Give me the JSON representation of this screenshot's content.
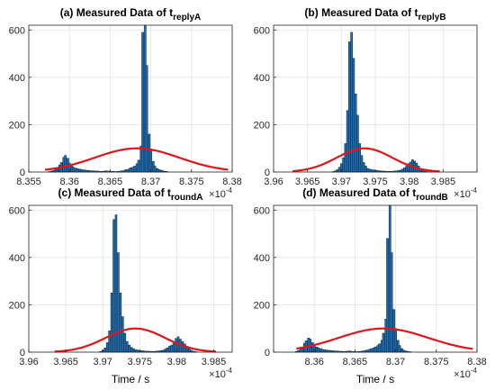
{
  "figure": {
    "xlabel": "Time / s",
    "colors": {
      "bar": "#1f6fb5",
      "bar_edge": "#0b2540",
      "curve": "#e0161b",
      "axis": "#262626",
      "grid": "#e2e2e2"
    }
  },
  "chart_data": [
    {
      "type": "bar",
      "title_main": "(a) Measured Data of t",
      "title_sub": "replyA",
      "xlabel": "",
      "ylabel": "",
      "xlim": [
        8.355,
        8.38
      ],
      "ylim": [
        0,
        620
      ],
      "xticks": [
        8.355,
        8.36,
        8.365,
        8.37,
        8.375,
        8.38
      ],
      "xtick_labels": [
        "8.355",
        "8.36",
        "8.365",
        "8.37",
        "8.375",
        "8.38"
      ],
      "yticks": [
        0,
        200,
        400,
        600
      ],
      "x_exponent": "×10^-4",
      "grid": true,
      "bin_width": 0.000245,
      "bars": [
        [
          8.3575,
          2
        ],
        [
          8.3578,
          4
        ],
        [
          8.358,
          6
        ],
        [
          8.3583,
          10
        ],
        [
          8.3585,
          18
        ],
        [
          8.3588,
          30
        ],
        [
          8.359,
          40
        ],
        [
          8.3593,
          62
        ],
        [
          8.3595,
          70
        ],
        [
          8.3598,
          58
        ],
        [
          8.36,
          38
        ],
        [
          8.3603,
          25
        ],
        [
          8.3605,
          20
        ],
        [
          8.3608,
          16
        ],
        [
          8.361,
          14
        ],
        [
          8.3613,
          12
        ],
        [
          8.3615,
          10
        ],
        [
          8.3618,
          9
        ],
        [
          8.362,
          8
        ],
        [
          8.3623,
          7
        ],
        [
          8.3625,
          6
        ],
        [
          8.3628,
          5
        ],
        [
          8.363,
          5
        ],
        [
          8.3633,
          4
        ],
        [
          8.3635,
          4
        ],
        [
          8.3638,
          3
        ],
        [
          8.364,
          3
        ],
        [
          8.3643,
          4
        ],
        [
          8.3645,
          5
        ],
        [
          8.3648,
          4
        ],
        [
          8.365,
          3
        ],
        [
          8.3653,
          3
        ],
        [
          8.3655,
          2
        ],
        [
          8.3658,
          2
        ],
        [
          8.366,
          3
        ],
        [
          8.3663,
          4
        ],
        [
          8.3665,
          5
        ],
        [
          8.3668,
          8
        ],
        [
          8.367,
          10
        ],
        [
          8.3673,
          12
        ],
        [
          8.3675,
          18
        ],
        [
          8.3678,
          20
        ],
        [
          8.368,
          25
        ],
        [
          8.3683,
          35
        ],
        [
          8.3685,
          50
        ],
        [
          8.3688,
          110
        ],
        [
          8.369,
          590
        ],
        [
          8.3693,
          620
        ],
        [
          8.3695,
          450
        ],
        [
          8.3698,
          160
        ],
        [
          8.37,
          95
        ],
        [
          8.3703,
          45
        ],
        [
          8.3705,
          25
        ],
        [
          8.3708,
          15
        ],
        [
          8.371,
          10
        ],
        [
          8.3713,
          8
        ],
        [
          8.3715,
          5
        ],
        [
          8.3718,
          3
        ],
        [
          8.372,
          2
        ]
      ],
      "curve": {
        "type": "gaussian",
        "mean": 8.3683,
        "std": 0.0052,
        "peak": 100,
        "range": [
          8.357,
          8.3795
        ]
      }
    },
    {
      "type": "bar",
      "title_main": "(b) Measured Data of t",
      "title_sub": "replyB",
      "xlabel": "",
      "ylabel": "",
      "xlim": [
        3.96,
        3.99
      ],
      "ylim": [
        0,
        620
      ],
      "xticks": [
        3.96,
        3.965,
        3.97,
        3.975,
        3.98,
        3.985,
        3.99
      ],
      "xtick_labels": [
        "3.96",
        "3.965",
        "3.97",
        "3.975",
        "3.98",
        "3.985",
        ""
      ],
      "yticks": [
        0,
        200,
        400,
        600
      ],
      "x_exponent": "×10^-4",
      "grid": true,
      "bin_width": 0.00028,
      "bars": [
        [
          3.9688,
          2
        ],
        [
          3.9691,
          5
        ],
        [
          3.9694,
          10
        ],
        [
          3.9697,
          20
        ],
        [
          3.97,
          35
        ],
        [
          3.9703,
          60
        ],
        [
          3.9706,
          120
        ],
        [
          3.9709,
          260
        ],
        [
          3.9712,
          550
        ],
        [
          3.9715,
          590
        ],
        [
          3.9718,
          480
        ],
        [
          3.9721,
          330
        ],
        [
          3.9724,
          240
        ],
        [
          3.9727,
          120
        ],
        [
          3.973,
          70
        ],
        [
          3.9733,
          40
        ],
        [
          3.9736,
          25
        ],
        [
          3.9739,
          15
        ],
        [
          3.9742,
          12
        ],
        [
          3.9745,
          10
        ],
        [
          3.9748,
          8
        ],
        [
          3.9751,
          7
        ],
        [
          3.9754,
          6
        ],
        [
          3.9757,
          5
        ],
        [
          3.976,
          4
        ],
        [
          3.9763,
          4
        ],
        [
          3.9766,
          3
        ],
        [
          3.9769,
          3
        ],
        [
          3.9772,
          3
        ],
        [
          3.9775,
          3
        ],
        [
          3.9778,
          4
        ],
        [
          3.9781,
          5
        ],
        [
          3.9784,
          6
        ],
        [
          3.9787,
          8
        ],
        [
          3.979,
          12
        ],
        [
          3.9793,
          18
        ],
        [
          3.9796,
          25
        ],
        [
          3.9799,
          35
        ],
        [
          3.9802,
          42
        ],
        [
          3.9805,
          52
        ],
        [
          3.9808,
          46
        ],
        [
          3.9811,
          38
        ],
        [
          3.9814,
          25
        ],
        [
          3.9817,
          15
        ],
        [
          3.982,
          8
        ],
        [
          3.9823,
          4
        ],
        [
          3.9826,
          2
        ]
      ],
      "curve": {
        "type": "gaussian",
        "mean": 3.9734,
        "std": 0.0041,
        "peak": 100,
        "range": [
          3.9628,
          3.9845
        ]
      }
    },
    {
      "type": "bar",
      "title_main": "(c) Measured Data of t",
      "title_sub": "roundA",
      "xlabel": "Time / s",
      "ylabel": "",
      "xlim": [
        3.96,
        3.9875
      ],
      "ylim": [
        0,
        620
      ],
      "xticks": [
        3.96,
        3.965,
        3.97,
        3.975,
        3.98,
        3.985
      ],
      "xtick_labels": [
        "3.96",
        "3.965",
        "3.97",
        "3.975",
        "3.98",
        "3.985"
      ],
      "yticks": [
        0,
        200,
        400,
        600
      ],
      "x_exponent": "×10^-4",
      "grid": true,
      "bin_width": 0.000245,
      "bars": [
        [
          3.9697,
          3
        ],
        [
          3.97,
          8
        ],
        [
          3.9703,
          18
        ],
        [
          3.9706,
          40
        ],
        [
          3.9709,
          90
        ],
        [
          3.9712,
          250
        ],
        [
          3.9715,
          560
        ],
        [
          3.9718,
          580
        ],
        [
          3.9721,
          420
        ],
        [
          3.9724,
          250
        ],
        [
          3.9727,
          150
        ],
        [
          3.973,
          80
        ],
        [
          3.9733,
          45
        ],
        [
          3.9736,
          30
        ],
        [
          3.9739,
          20
        ],
        [
          3.9742,
          14
        ],
        [
          3.9745,
          10
        ],
        [
          3.9748,
          8
        ],
        [
          3.9751,
          7
        ],
        [
          3.9754,
          6
        ],
        [
          3.9757,
          5
        ],
        [
          3.976,
          4
        ],
        [
          3.9763,
          4
        ],
        [
          3.9766,
          3
        ],
        [
          3.9769,
          3
        ],
        [
          3.9772,
          4
        ],
        [
          3.9775,
          5
        ],
        [
          3.9778,
          6
        ],
        [
          3.9781,
          8
        ],
        [
          3.9784,
          12
        ],
        [
          3.9787,
          18
        ],
        [
          3.979,
          25
        ],
        [
          3.9793,
          30
        ],
        [
          3.9796,
          40
        ],
        [
          3.9799,
          58
        ],
        [
          3.9802,
          65
        ],
        [
          3.9805,
          55
        ],
        [
          3.9808,
          45
        ],
        [
          3.9811,
          35
        ],
        [
          3.9814,
          25
        ],
        [
          3.9817,
          15
        ],
        [
          3.982,
          8
        ],
        [
          3.9823,
          4
        ],
        [
          3.9826,
          2
        ]
      ],
      "curve": {
        "type": "gaussian",
        "mean": 3.9744,
        "std": 0.004,
        "peak": 100,
        "range": [
          3.9635,
          3.9853
        ]
      }
    },
    {
      "type": "bar",
      "title_main": "(d) Measured Data of t",
      "title_sub": "roundB",
      "xlabel": "Time / s",
      "ylabel": "",
      "xlim": [
        8.355,
        8.38
      ],
      "ylim": [
        0,
        620
      ],
      "xticks": [
        8.355,
        8.36,
        8.365,
        8.37,
        8.375,
        8.38
      ],
      "xtick_labels": [
        "",
        "8.36",
        "8.365",
        "8.37",
        "8.375",
        "8.38"
      ],
      "yticks": [
        0,
        200,
        400,
        600
      ],
      "x_exponent": "×10^-4",
      "grid": true,
      "bin_width": 0.000245,
      "bars": [
        [
          8.3578,
          3
        ],
        [
          8.358,
          6
        ],
        [
          8.3583,
          12
        ],
        [
          8.3585,
          22
        ],
        [
          8.3588,
          38
        ],
        [
          8.359,
          48
        ],
        [
          8.3593,
          60
        ],
        [
          8.3595,
          55
        ],
        [
          8.3598,
          40
        ],
        [
          8.36,
          28
        ],
        [
          8.3603,
          22
        ],
        [
          8.3605,
          18
        ],
        [
          8.3608,
          15
        ],
        [
          8.361,
          12
        ],
        [
          8.3613,
          10
        ],
        [
          8.3615,
          9
        ],
        [
          8.3618,
          8
        ],
        [
          8.362,
          7
        ],
        [
          8.3623,
          6
        ],
        [
          8.3625,
          5
        ],
        [
          8.3628,
          5
        ],
        [
          8.363,
          4
        ],
        [
          8.3633,
          4
        ],
        [
          8.3635,
          3
        ],
        [
          8.3638,
          3
        ],
        [
          8.364,
          4
        ],
        [
          8.3643,
          5
        ],
        [
          8.3645,
          4
        ],
        [
          8.3648,
          3
        ],
        [
          8.365,
          3
        ],
        [
          8.3653,
          2
        ],
        [
          8.3655,
          3
        ],
        [
          8.3658,
          4
        ],
        [
          8.366,
          5
        ],
        [
          8.3663,
          7
        ],
        [
          8.3665,
          9
        ],
        [
          8.3668,
          12
        ],
        [
          8.367,
          15
        ],
        [
          8.3673,
          18
        ],
        [
          8.3675,
          22
        ],
        [
          8.3678,
          28
        ],
        [
          8.368,
          35
        ],
        [
          8.3683,
          50
        ],
        [
          8.3685,
          80
        ],
        [
          8.3688,
          140
        ],
        [
          8.369,
          480
        ],
        [
          8.3693,
          620
        ],
        [
          8.3695,
          420
        ],
        [
          8.3698,
          180
        ],
        [
          8.37,
          100
        ],
        [
          8.3703,
          50
        ],
        [
          8.3705,
          28
        ],
        [
          8.3708,
          15
        ],
        [
          8.371,
          8
        ],
        [
          8.3713,
          5
        ],
        [
          8.3715,
          3
        ],
        [
          8.3718,
          2
        ]
      ],
      "curve": {
        "type": "gaussian",
        "mean": 8.3685,
        "std": 0.0055,
        "peak": 100,
        "range": [
          8.3578,
          8.3795
        ]
      }
    }
  ]
}
